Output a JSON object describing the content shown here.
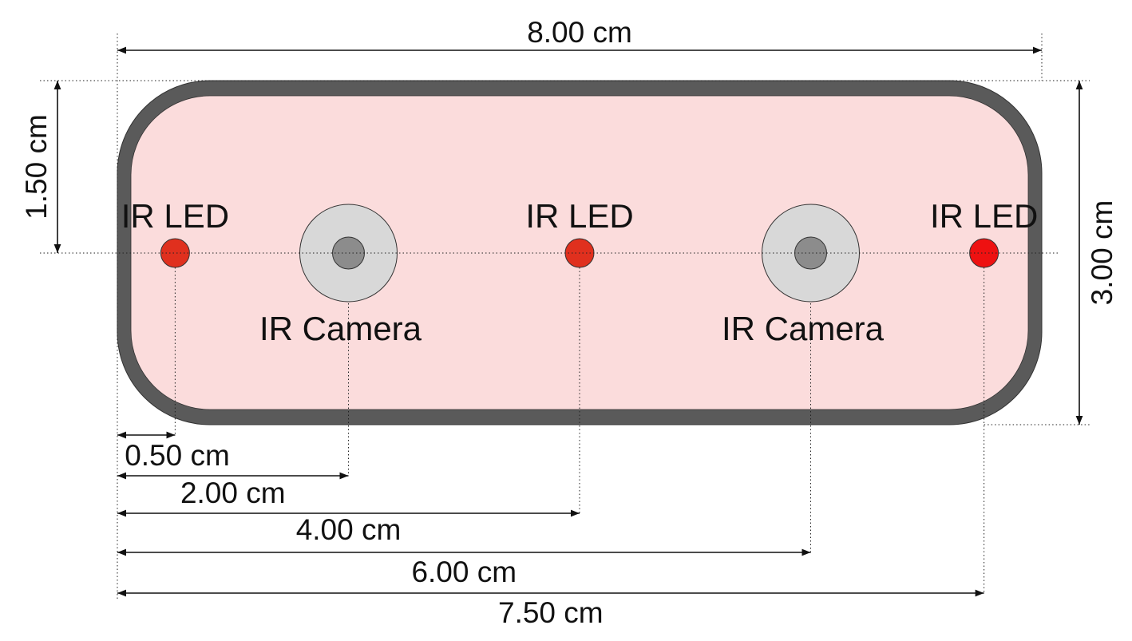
{
  "units": "cm",
  "device": {
    "width": 8.0,
    "height": 3.0,
    "body_color": "#fbdcdc",
    "border_color": "#5a5a5a"
  },
  "components": [
    {
      "type": "led",
      "label": "IR LED",
      "x": 0.5,
      "color": "#e0301e"
    },
    {
      "type": "camera",
      "label": "IR Camera",
      "x": 2.0,
      "lens_outer": "#d8d8d8",
      "lens_inner": "#8c8c8c"
    },
    {
      "type": "led",
      "label": "IR LED",
      "x": 4.0,
      "color": "#e0301e"
    },
    {
      "type": "camera",
      "label": "IR Camera",
      "x": 6.0,
      "lens_outer": "#d8d8d8",
      "lens_inner": "#8c8c8c"
    },
    {
      "type": "led",
      "label": "IR LED",
      "x": 7.5,
      "color": "#ee1111"
    }
  ],
  "dimensions": {
    "total_width": {
      "value": 8.0,
      "label": "8.00 cm"
    },
    "total_height": {
      "value": 3.0,
      "label": "3.00 cm"
    },
    "center_height": {
      "value": 1.5,
      "label": "1.50 cm"
    },
    "offsets": [
      {
        "value": 0.5,
        "label": "0.50 cm"
      },
      {
        "value": 2.0,
        "label": "2.00 cm"
      },
      {
        "value": 4.0,
        "label": "4.00 cm"
      },
      {
        "value": 6.0,
        "label": "6.00 cm"
      },
      {
        "value": 7.5,
        "label": "7.50 cm"
      }
    ]
  }
}
